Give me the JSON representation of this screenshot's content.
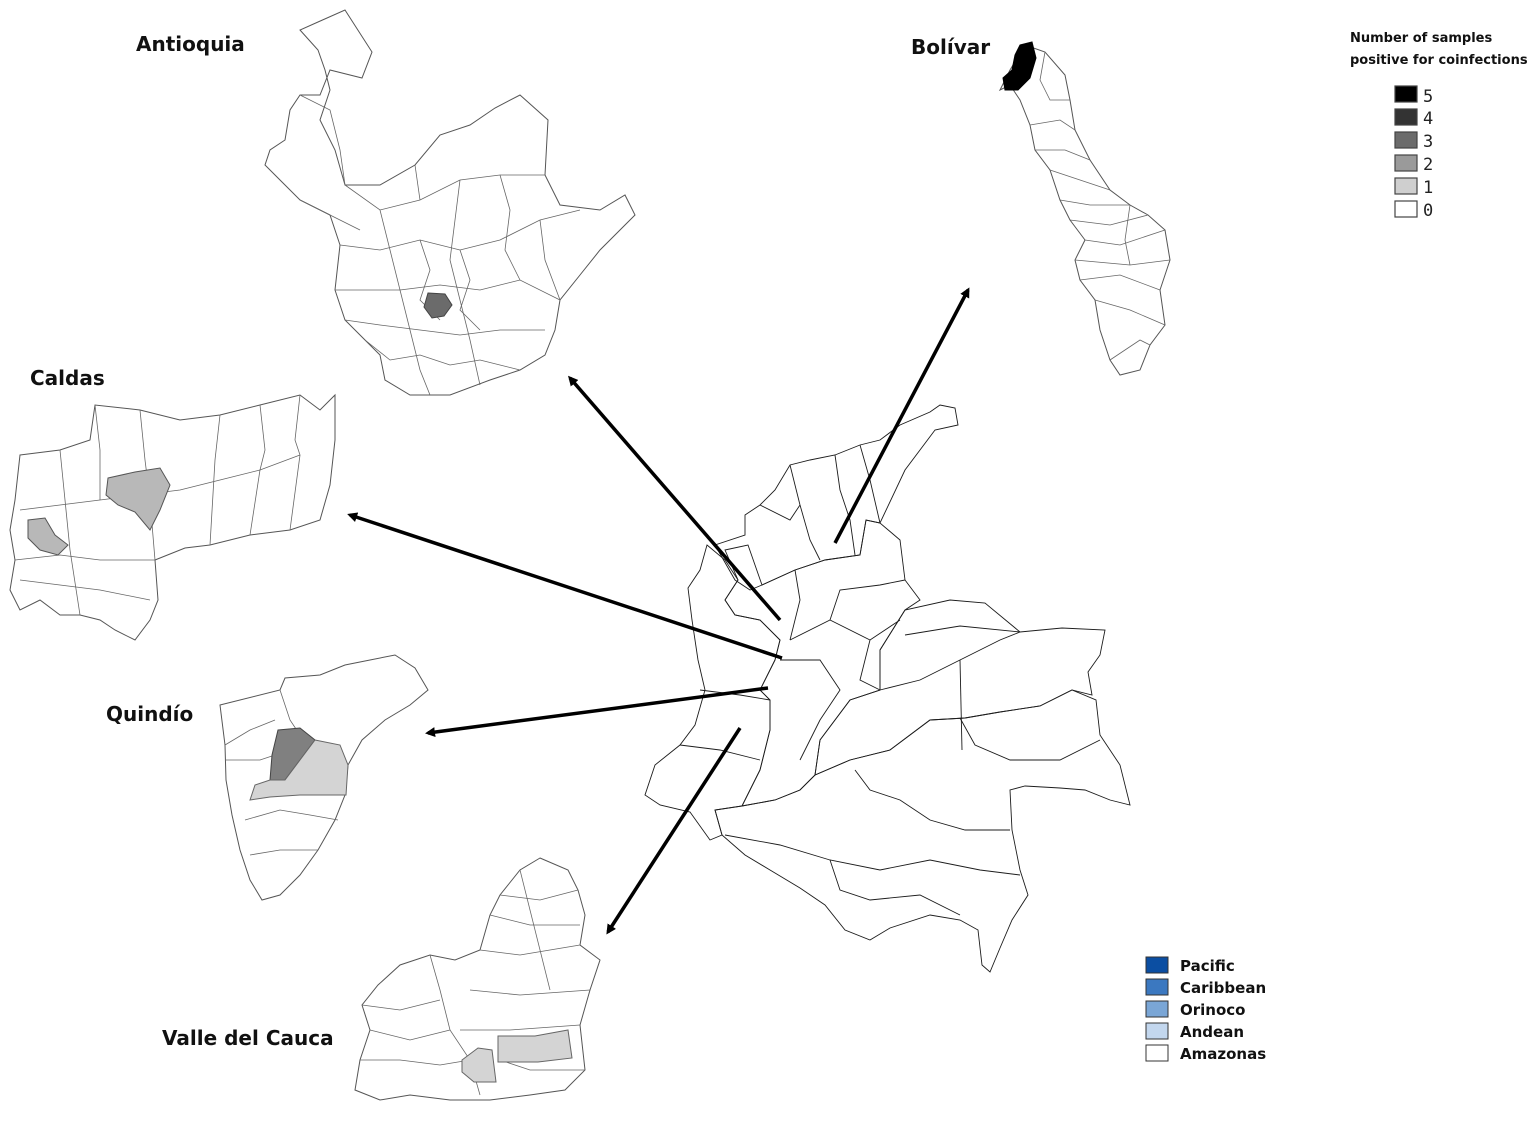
{
  "departments": [
    {
      "id": "antioquia",
      "label": "Antioquia"
    },
    {
      "id": "bolivar",
      "label": "Bolívar"
    },
    {
      "id": "caldas",
      "label": "Caldas"
    },
    {
      "id": "quindio",
      "label": "Quindío"
    },
    {
      "id": "valle",
      "label": "Valle del Cauca"
    }
  ],
  "coinfection_legend": {
    "title_line1": "Number of samples",
    "title_line2": "positive for coinfections",
    "levels": [
      {
        "value": "5",
        "color": "#000000"
      },
      {
        "value": "4",
        "color": "#333333"
      },
      {
        "value": "3",
        "color": "#6b6b6b"
      },
      {
        "value": "2",
        "color": "#9a9a9a"
      },
      {
        "value": "1",
        "color": "#cfcfcf"
      },
      {
        "value": "0",
        "color": "#ffffff"
      }
    ]
  },
  "region_legend": [
    {
      "name": "Pacific",
      "color": "#0b4ea2"
    },
    {
      "name": "Caribbean",
      "color": "#3b78c0"
    },
    {
      "name": "Orinoco",
      "color": "#7aa6d6"
    },
    {
      "name": "Andean",
      "color": "#c3d7ee"
    },
    {
      "name": "Amazonas",
      "color": "#ffffff"
    }
  ]
}
